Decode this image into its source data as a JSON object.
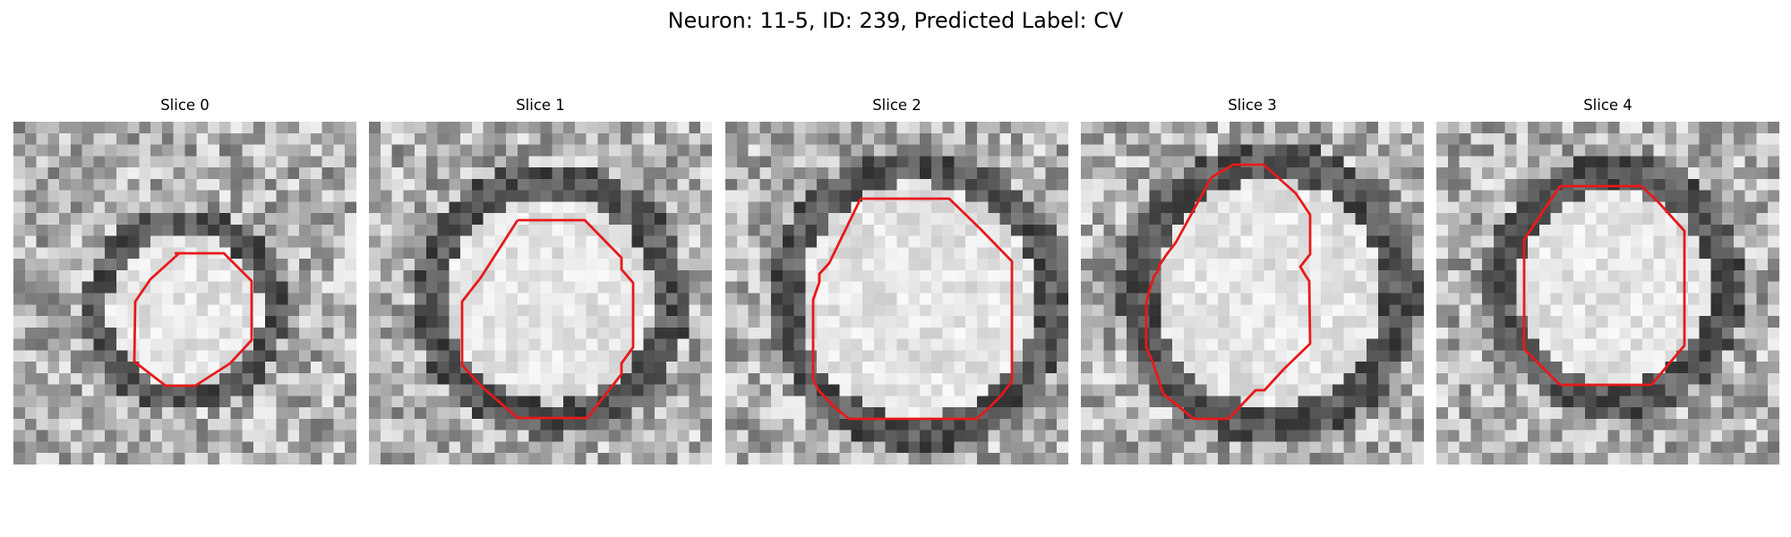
{
  "title": "Neuron: 11-5, ID: 239, Predicted Label: CV",
  "contour_color": "#e8191a",
  "colormap": "grayscale",
  "panels": [
    {
      "title": "Slice 0"
    },
    {
      "title": "Slice 1"
    },
    {
      "title": "Slice 2"
    },
    {
      "title": "Slice 3"
    },
    {
      "title": "Slice 4"
    }
  ]
}
